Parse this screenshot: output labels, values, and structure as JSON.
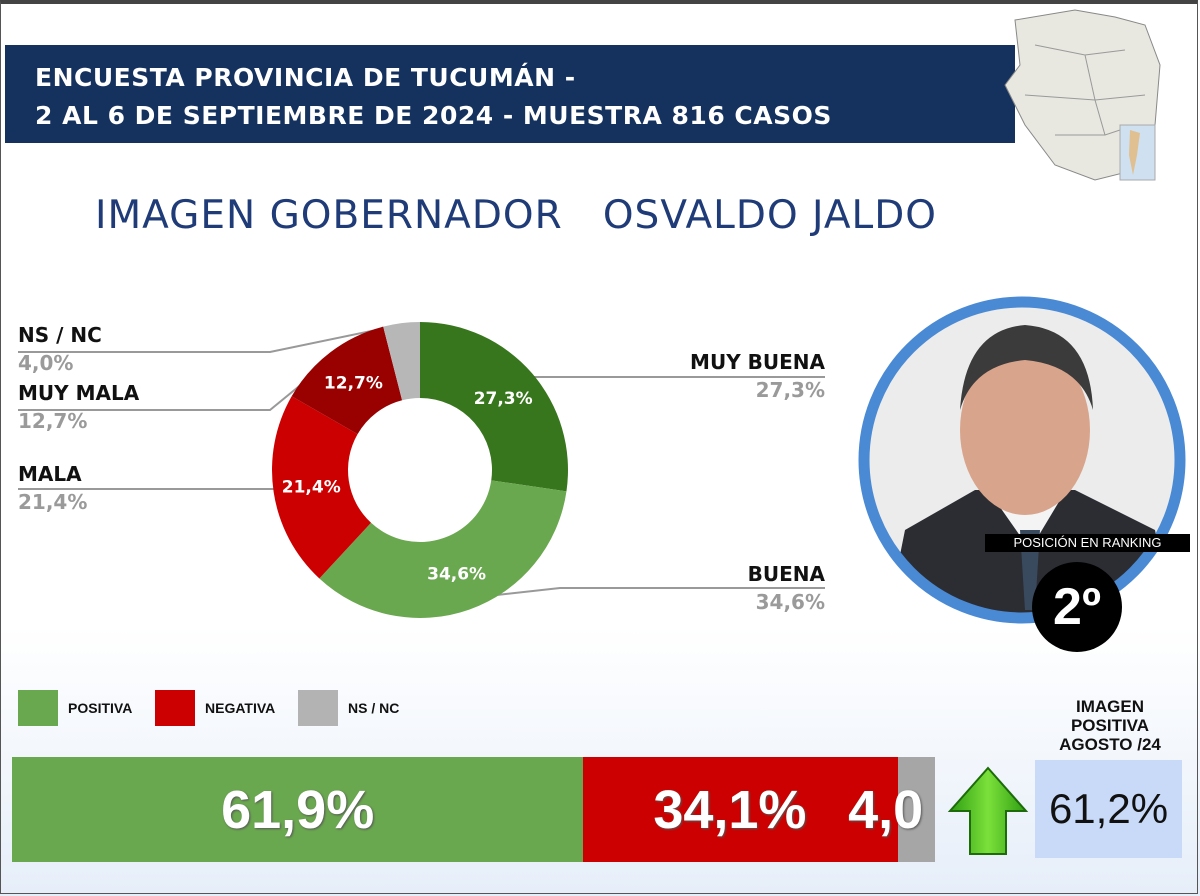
{
  "header": {
    "line1": "ENCUESTA PROVINCIA DE TUCUMÁN -",
    "line2": "2 AL 6 DE SEPTIEMBRE DE 2024 - MUESTRA 816 CASOS"
  },
  "title": "IMAGEN GOBERNADOR   OSVALDO JALDO",
  "chart_data": [
    {
      "type": "pie",
      "variant": "donut",
      "slices": [
        {
          "name": "MUY BUENA",
          "value": 27.3,
          "label": "27,3%",
          "color": "#38761d"
        },
        {
          "name": "BUENA",
          "value": 34.6,
          "label": "34,6%",
          "color": "#6aa84f"
        },
        {
          "name": "MALA",
          "value": 21.4,
          "label": "21,4%",
          "color": "#cc0000"
        },
        {
          "name": "MUY MALA",
          "value": 12.7,
          "label": "12,7%",
          "color": "#990000"
        },
        {
          "name": "NS / NC",
          "value": 4.0,
          "label": "4,0%",
          "color": "#b7b7b7"
        }
      ]
    },
    {
      "type": "bar",
      "variant": "stacked-horizontal",
      "series": [
        {
          "name": "POSITIVA",
          "value": 61.9,
          "label": "61,9%",
          "color": "#6aa84f"
        },
        {
          "name": "NEGATIVA",
          "value": 34.1,
          "label": "34,1%",
          "color": "#cc0000"
        },
        {
          "name": "NS / NC",
          "value": 4.0,
          "label": "4,0",
          "color": "#a6a6a6"
        }
      ]
    }
  ],
  "photo": {
    "badge": "POSICIÓN EN RANKING",
    "rank": "2º",
    "ring_color": "#4a8ad4"
  },
  "previous": {
    "heading_lines": [
      "IMAGEN",
      "POSITIVA",
      "AGOSTO /24"
    ],
    "value": "61,2%",
    "trend": "up"
  }
}
